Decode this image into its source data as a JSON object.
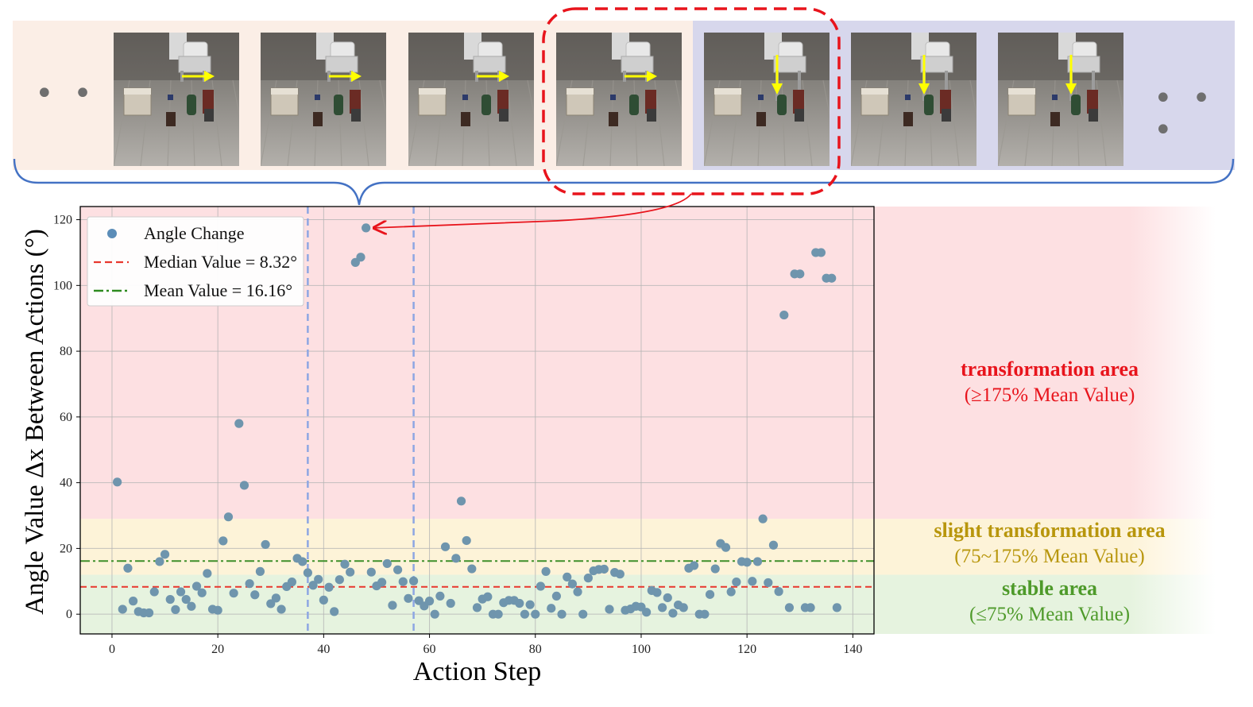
{
  "frames": {
    "ellipsis_left": "• • •",
    "ellipsis_right": "• • •",
    "items": [
      {
        "id": "frame-1",
        "arrow": "right",
        "group": "translation"
      },
      {
        "id": "frame-2",
        "arrow": "right",
        "group": "translation"
      },
      {
        "id": "frame-3",
        "arrow": "right",
        "group": "translation"
      },
      {
        "id": "frame-4",
        "arrow": "right",
        "group": "translation",
        "highlighted": true
      },
      {
        "id": "frame-5",
        "arrow": "down",
        "group": "descend"
      },
      {
        "id": "frame-6",
        "arrow": "down",
        "group": "descend"
      },
      {
        "id": "frame-7",
        "arrow": "down",
        "group": "descend"
      }
    ],
    "colors": {
      "left_band": "#fbeee6",
      "right_band": "#d7d7ec",
      "highlight": "#e8141c",
      "brace": "#4472c4",
      "arrow": "#ffff00"
    }
  },
  "zones": {
    "transformation": {
      "title": "transformation area",
      "subtitle": "(≥175% Mean Value)",
      "color": "#e8141c",
      "bg": "#fde0e2"
    },
    "slight": {
      "title": "slight transformation area",
      "subtitle": "(75~175% Mean Value)",
      "color": "#b8960c",
      "bg": "#fdf3d8"
    },
    "stable": {
      "title": "stable area",
      "subtitle": "(≤75% Mean Value)",
      "color": "#4e9a2a",
      "bg": "#e6f3df"
    }
  },
  "chart_data": {
    "type": "scatter",
    "title": "",
    "xlabel": "Action Step",
    "ylabel": "Angle Value Δx Between Actions  (°)",
    "xlim": [
      -6,
      144
    ],
    "ylim": [
      -6,
      124
    ],
    "xticks": [
      0,
      20,
      40,
      60,
      80,
      100,
      120,
      140
    ],
    "yticks": [
      0,
      20,
      40,
      60,
      80,
      100,
      120
    ],
    "grid": true,
    "legend_position": "top-left",
    "zone_bounds": {
      "stable_max": 12,
      "slight_max": 29
    },
    "legend": [
      {
        "label": "Angle Change",
        "kind": "point",
        "color": "#5b8db8"
      },
      {
        "label": "Median Value = 8.32°",
        "kind": "dashed",
        "color": "#e8372e"
      },
      {
        "label": "Mean Value = 16.16°",
        "kind": "dashdot",
        "color": "#2e8b1f"
      }
    ],
    "median": 8.32,
    "mean": 16.16,
    "vlines": [
      37,
      57
    ],
    "highlighted_point": {
      "x": 48,
      "y": 117.5
    },
    "series": [
      {
        "name": "Angle Change",
        "color": "#6f95ad",
        "points": [
          [
            1,
            40.2
          ],
          [
            2,
            1.5
          ],
          [
            3,
            14
          ],
          [
            4,
            4
          ],
          [
            5,
            0.8
          ],
          [
            6,
            0.4
          ],
          [
            7,
            0.4
          ],
          [
            8,
            6.8
          ],
          [
            9,
            16
          ],
          [
            10,
            18.2
          ],
          [
            11,
            4.5
          ],
          [
            12,
            1.4
          ],
          [
            13,
            6.8
          ],
          [
            14,
            4.5
          ],
          [
            15,
            2.4
          ],
          [
            16,
            8.5
          ],
          [
            17,
            6.5
          ],
          [
            18,
            12.4
          ],
          [
            19,
            1.5
          ],
          [
            20,
            1.2
          ],
          [
            21,
            22.3
          ],
          [
            22,
            29.6
          ],
          [
            23,
            6.4
          ],
          [
            24,
            58
          ],
          [
            25,
            39.2
          ],
          [
            26,
            9.3
          ],
          [
            27,
            5.9
          ],
          [
            28,
            13
          ],
          [
            29,
            21.2
          ],
          [
            30,
            3.2
          ],
          [
            31,
            4.9
          ],
          [
            32,
            1.5
          ],
          [
            33,
            8.4
          ],
          [
            34,
            9.8
          ],
          [
            35,
            17
          ],
          [
            36,
            16
          ],
          [
            37,
            12.6
          ],
          [
            38,
            8.8
          ],
          [
            39,
            10.6
          ],
          [
            40,
            4.3
          ],
          [
            41,
            8.2
          ],
          [
            42,
            0.8
          ],
          [
            43,
            10.5
          ],
          [
            44,
            15.2
          ],
          [
            45,
            12.8
          ],
          [
            46,
            107
          ],
          [
            47,
            108.6
          ],
          [
            48,
            117.5
          ],
          [
            49,
            12.8
          ],
          [
            50,
            8.6
          ],
          [
            51,
            9.7
          ],
          [
            52,
            15.4
          ],
          [
            53,
            2.7
          ],
          [
            54,
            13.5
          ],
          [
            55,
            9.9
          ],
          [
            56,
            4.8
          ],
          [
            57,
            10.1
          ],
          [
            58,
            4.1
          ],
          [
            59,
            2.5
          ],
          [
            60,
            4
          ],
          [
            61,
            0
          ],
          [
            62,
            5.5
          ],
          [
            63,
            20.5
          ],
          [
            64,
            3.3
          ],
          [
            65,
            17
          ],
          [
            66,
            34.4
          ],
          [
            67,
            22.4
          ],
          [
            68,
            13.8
          ],
          [
            69,
            2
          ],
          [
            70,
            4.6
          ],
          [
            71,
            5.3
          ],
          [
            72,
            0
          ],
          [
            73,
            0
          ],
          [
            74,
            3.5
          ],
          [
            75,
            4.2
          ],
          [
            76,
            4.2
          ],
          [
            77,
            3.3
          ],
          [
            78,
            0
          ],
          [
            79,
            2.9
          ],
          [
            80,
            0
          ],
          [
            81,
            8.5
          ],
          [
            82,
            13
          ],
          [
            83,
            1.8
          ],
          [
            84,
            5.5
          ],
          [
            85,
            0
          ],
          [
            86,
            11.3
          ],
          [
            87,
            9.2
          ],
          [
            88,
            6.8
          ],
          [
            89,
            0
          ],
          [
            90,
            11
          ],
          [
            91,
            13.2
          ],
          [
            92,
            13.6
          ],
          [
            93,
            13.7
          ],
          [
            94,
            1.5
          ],
          [
            95,
            12.7
          ],
          [
            96,
            12.2
          ],
          [
            97,
            1.2
          ],
          [
            98,
            1.6
          ],
          [
            99,
            2.4
          ],
          [
            100,
            2.2
          ],
          [
            101,
            0.6
          ],
          [
            102,
            7.2
          ],
          [
            103,
            6.6
          ],
          [
            104,
            2
          ],
          [
            105,
            5
          ],
          [
            106,
            0.3
          ],
          [
            107,
            2.8
          ],
          [
            108,
            2
          ],
          [
            109,
            14
          ],
          [
            110,
            14.8
          ],
          [
            111,
            0
          ],
          [
            112,
            0
          ],
          [
            113,
            6
          ],
          [
            114,
            13.8
          ],
          [
            115,
            21.5
          ],
          [
            116,
            20.3
          ],
          [
            117,
            6.8
          ],
          [
            118,
            9.8
          ],
          [
            119,
            16
          ],
          [
            120,
            15.8
          ],
          [
            121,
            10
          ],
          [
            122,
            16
          ],
          [
            123,
            29
          ],
          [
            124,
            9.6
          ],
          [
            125,
            21
          ],
          [
            126,
            6.9
          ],
          [
            127,
            91
          ],
          [
            128,
            2
          ],
          [
            129,
            103.5
          ],
          [
            130,
            103.5
          ],
          [
            131,
            2
          ],
          [
            132,
            2
          ],
          [
            133,
            110
          ],
          [
            134,
            110
          ],
          [
            135,
            102.2
          ],
          [
            136,
            102.2
          ],
          [
            137,
            2
          ]
        ]
      }
    ]
  }
}
